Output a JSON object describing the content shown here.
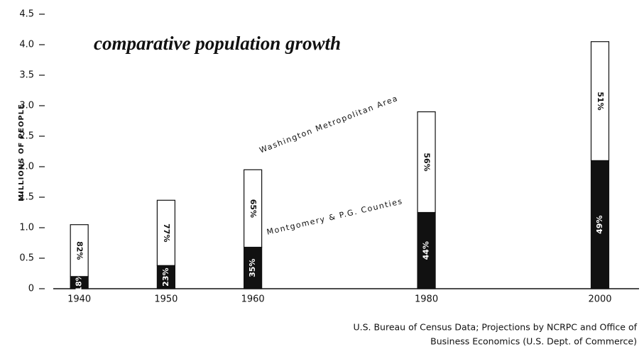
{
  "chart_data": {
    "type": "stacked_bar",
    "title": "comparative population growth",
    "y_label": "MILLIONS OF PEOPLE",
    "source": [
      "U.S. Bureau of Census Data; Projections by NCRPC and Office of",
      "Business Economics (U.S. Dept. of Commerce)"
    ],
    "x": [
      1940,
      1950,
      1960,
      1980,
      2000
    ],
    "xlim": [
      1937,
      2004.5
    ],
    "ylim": [
      0,
      4.5
    ],
    "yticks": [
      0,
      0.5,
      {
        "value": 1,
        "label": "1.0"
      },
      1.5,
      {
        "value": 2,
        "label": "2.0"
      },
      2.5,
      {
        "value": 3,
        "label": "3.0"
      },
      3.5,
      {
        "value": 4,
        "label": "4.0"
      },
      4.5
    ],
    "series": [
      {
        "name": "Montgomery & P.G. Counties",
        "color": "#111111",
        "values": [
          0.2,
          0.38,
          0.68,
          1.25,
          2.1
        ],
        "share_labels": [
          "18%",
          "23%",
          "35%",
          "44%",
          "49%"
        ]
      },
      {
        "name": "Washington Metropolitan Area",
        "color": "#ffffff",
        "values": [
          0.85,
          1.07,
          1.27,
          1.65,
          1.95
        ],
        "share_labels": [
          "82%",
          "77%",
          "65%",
          "56%",
          "51%"
        ]
      }
    ]
  }
}
